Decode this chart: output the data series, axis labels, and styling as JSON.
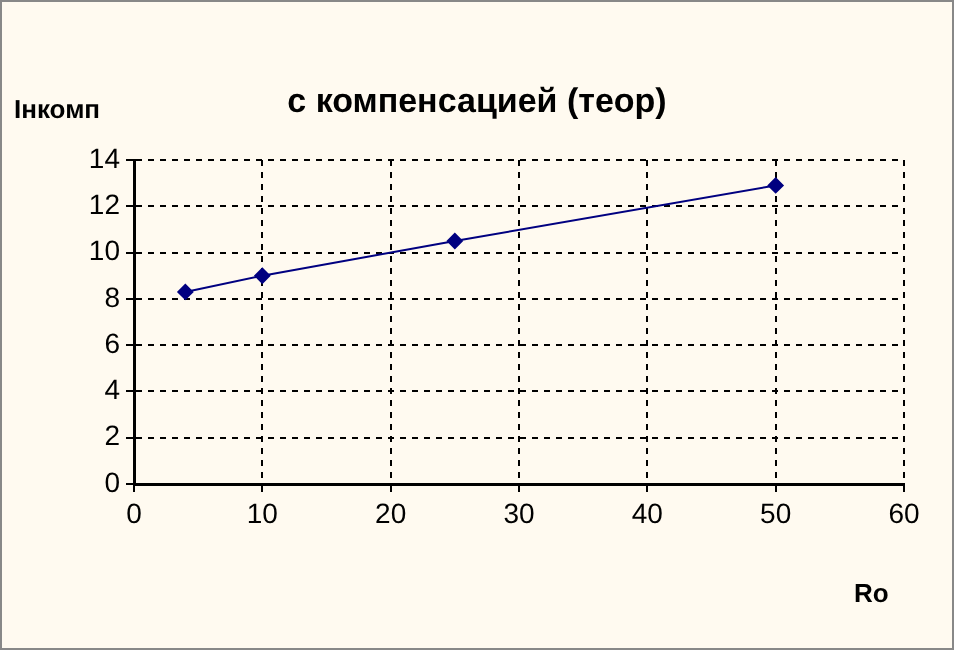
{
  "chart_data": {
    "type": "line",
    "title": "с компенсацией (теор)",
    "xlabel": "Ro",
    "ylabel": "Iнкомп",
    "x": [
      4,
      10,
      25,
      50
    ],
    "series": [
      {
        "color": "#000080",
        "values": [
          8.3,
          9.0,
          10.5,
          12.9
        ]
      }
    ],
    "xlim": [
      0,
      60
    ],
    "xticks": [
      0,
      10,
      20,
      30,
      40,
      50,
      60
    ],
    "ylim": [
      0,
      14
    ],
    "yticks": [
      0,
      2,
      4,
      6,
      8,
      10,
      12,
      14
    ],
    "grid": true,
    "legend": false,
    "marker": "diamond",
    "line_style": "solid"
  }
}
